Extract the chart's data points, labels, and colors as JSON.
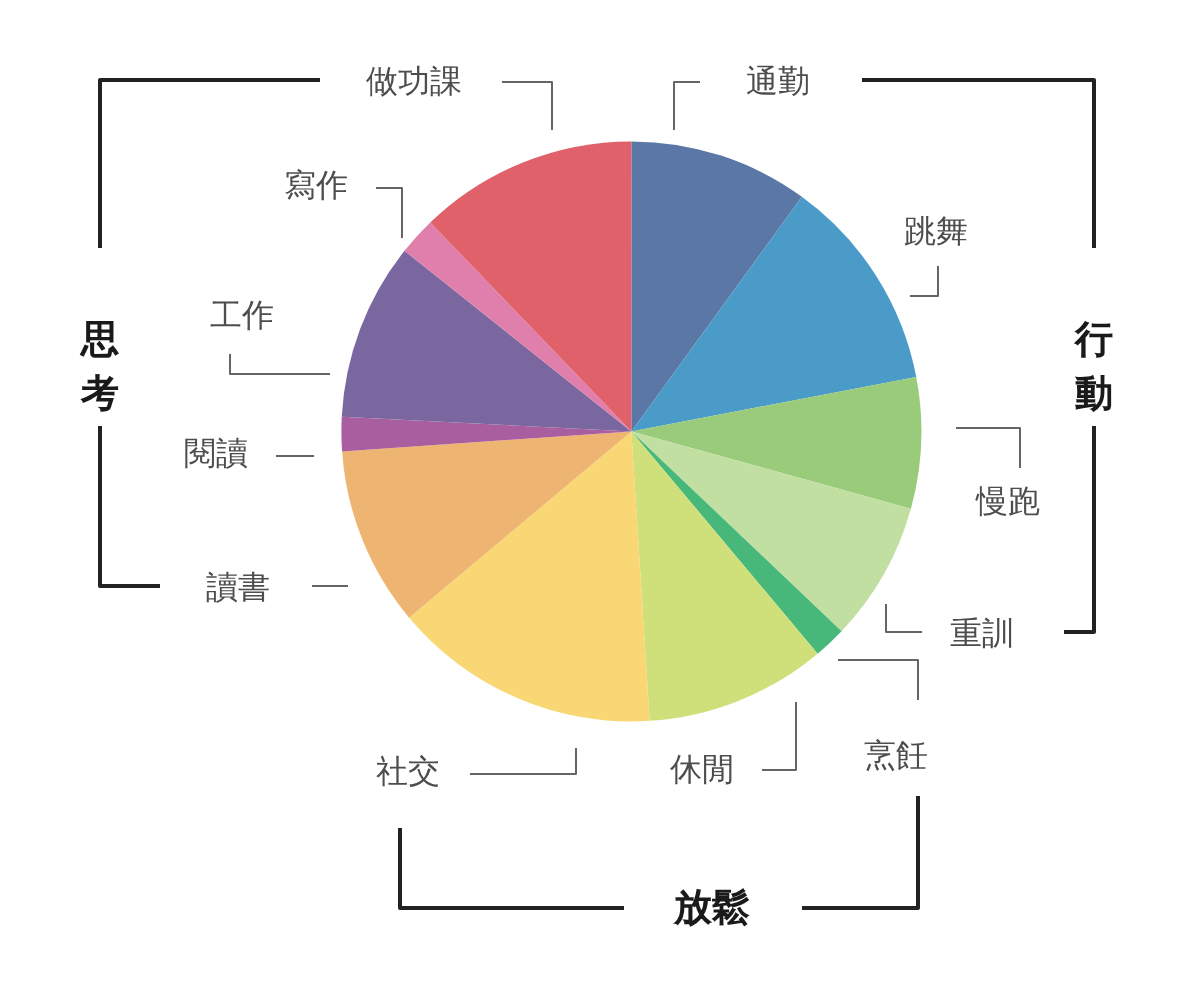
{
  "chart_data": {
    "type": "pie",
    "categories": [
      "通勤",
      "跳舞",
      "慢跑",
      "重訓",
      "烹飪",
      "休閒",
      "社交",
      "讀書",
      "閱讀",
      "工作",
      "寫作",
      "做功課"
    ],
    "values": [
      10,
      12,
      7.3,
      7.8,
      1.8,
      10.1,
      14.9,
      10,
      1.9,
      9.9,
      2.1,
      12.2
    ],
    "colors": [
      "#5b77a6",
      "#4a9bc7",
      "#9acb7b",
      "#c2dfa2",
      "#47b77a",
      "#cfe07a",
      "#f8d774",
      "#eeb472",
      "#a95f9f",
      "#7a679f",
      "#e07fab",
      "#e0616a"
    ],
    "annotations": [
      "思考",
      "行動",
      "放鬆"
    ]
  }
}
